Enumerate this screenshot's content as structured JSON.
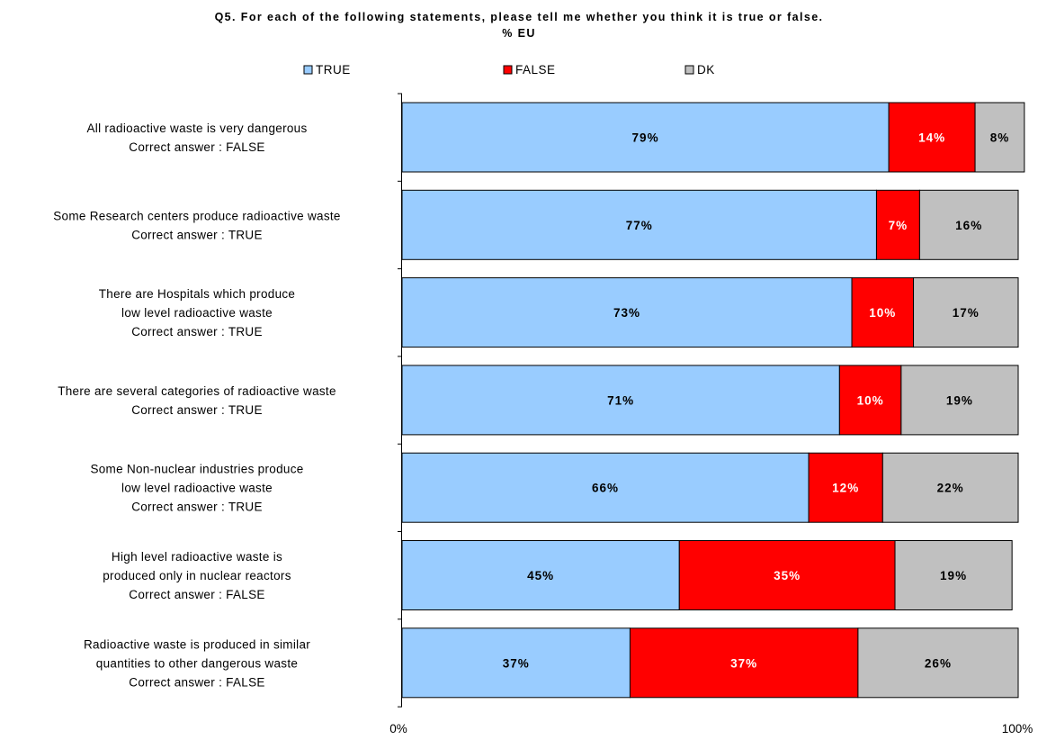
{
  "chart_data": {
    "type": "bar",
    "orientation": "horizontal",
    "stacked": "percent",
    "title": "Q5. For each of the following statements, please tell me whether you think it is true or false.",
    "subtitle": "% EU",
    "categories": [
      [
        "All radioactive waste is very dangerous",
        "Correct answer : FALSE"
      ],
      [
        "Some Research centers produce radioactive waste",
        "Correct answer : TRUE"
      ],
      [
        "There are Hospitals which  produce",
        "low level radioactive waste",
        "Correct answer : TRUE"
      ],
      [
        "There are several categories of radioactive waste",
        "Correct answer : TRUE"
      ],
      [
        "Some Non-nuclear industries produce",
        "low level radioactive waste",
        "Correct answer : TRUE"
      ],
      [
        "High level radioactive waste is",
        "produced only in nuclear reactors",
        "Correct answer : FALSE"
      ],
      [
        "Radioactive waste is produced in similar",
        "quantities to other dangerous waste",
        "Correct answer : FALSE"
      ]
    ],
    "series": [
      {
        "name": "TRUE",
        "color": "#99ccff",
        "label_color": "#000000",
        "values": [
          79,
          77,
          73,
          71,
          66,
          45,
          37
        ]
      },
      {
        "name": "FALSE",
        "color": "#ff0000",
        "label_color": "#ffffff",
        "values": [
          14,
          7,
          10,
          10,
          12,
          35,
          37
        ]
      },
      {
        "name": "DK",
        "color": "#c0c0c0",
        "label_color": "#000000",
        "values": [
          8,
          16,
          17,
          19,
          22,
          19,
          26
        ]
      }
    ],
    "value_suffix": "%",
    "xlim": [
      0,
      100
    ],
    "x_tick_labels": [
      "0%",
      "100%"
    ],
    "legend_position": "top",
    "grid": false
  }
}
